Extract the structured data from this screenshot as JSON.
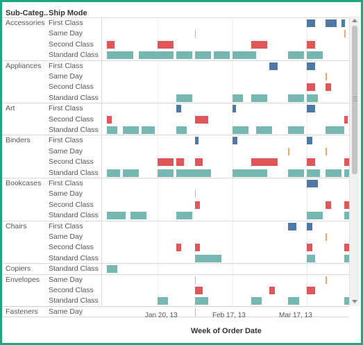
{
  "headers": {
    "subcategory": "Sub-Categ..",
    "ship_mode": "Ship Mode"
  },
  "colors": {
    "First Class": "#4e79a7",
    "Same Day": "#f2a85e",
    "Second Class": "#e15759",
    "Standard Class": "#76b7b2"
  },
  "chart_data": {
    "type": "gantt",
    "x_label": "Week of Order Date",
    "x_ticks": [
      "Jan 20, 13",
      "Feb 17, 13",
      "Mar 17, 13"
    ],
    "x_range": [
      "2012-12-30",
      "2013-04-01"
    ],
    "groups": [
      {
        "subcategory": "Accessories",
        "rows": [
          {
            "mode": "First Class",
            "bars": [
              [
                "2013-03-17",
                "2013-03-20"
              ],
              [
                "2013-03-24",
                "2013-03-28"
              ],
              [
                "2013-03-30",
                "2013-03-31"
              ]
            ]
          },
          {
            "mode": "Same Day",
            "bars": [
              [
                "2013-02-03",
                "2013-02-03"
              ],
              [
                "2013-03-31",
                "2013-03-31"
              ]
            ]
          },
          {
            "mode": "Second Class",
            "bars": [
              [
                "2013-01-01",
                "2013-01-04"
              ],
              [
                "2013-01-20",
                "2013-01-26"
              ],
              [
                "2013-02-24",
                "2013-03-02"
              ],
              [
                "2013-03-17",
                "2013-03-20"
              ]
            ]
          },
          {
            "mode": "Standard Class",
            "bars": [
              [
                "2013-01-01",
                "2013-01-11"
              ],
              [
                "2013-01-13",
                "2013-01-23"
              ],
              [
                "2013-01-20",
                "2013-01-26"
              ],
              [
                "2013-01-27",
                "2013-02-02"
              ],
              [
                "2013-02-03",
                "2013-02-09"
              ],
              [
                "2013-02-10",
                "2013-02-16"
              ],
              [
                "2013-02-17",
                "2013-02-26"
              ],
              [
                "2013-03-10",
                "2013-03-16"
              ],
              [
                "2013-03-17",
                "2013-03-23"
              ]
            ]
          }
        ]
      },
      {
        "subcategory": "Appliances",
        "rows": [
          {
            "mode": "First Class",
            "bars": [
              [
                "2013-03-03",
                "2013-03-06"
              ],
              [
                "2013-03-17",
                "2013-03-20"
              ]
            ]
          },
          {
            "mode": "Same Day",
            "bars": [
              [
                "2013-03-24",
                "2013-03-24"
              ]
            ]
          },
          {
            "mode": "Second Class",
            "bars": [
              [
                "2013-03-17",
                "2013-03-20"
              ],
              [
                "2013-03-24",
                "2013-03-26"
              ]
            ]
          },
          {
            "mode": "Standard Class",
            "bars": [
              [
                "2013-01-27",
                "2013-02-02"
              ],
              [
                "2013-02-17",
                "2013-02-21"
              ],
              [
                "2013-02-24",
                "2013-03-02"
              ],
              [
                "2013-03-10",
                "2013-03-16"
              ],
              [
                "2013-03-17",
                "2013-03-21"
              ]
            ]
          }
        ]
      },
      {
        "subcategory": "Art",
        "rows": [
          {
            "mode": "First Class",
            "bars": [
              [
                "2013-01-27",
                "2013-01-29"
              ],
              [
                "2013-02-17",
                "2013-02-17"
              ],
              [
                "2013-03-17",
                "2013-03-20"
              ]
            ]
          },
          {
            "mode": "Second Class",
            "bars": [
              [
                "2013-01-01",
                "2013-01-03"
              ],
              [
                "2013-02-03",
                "2013-02-08"
              ],
              [
                "2013-03-31",
                "2013-04-01"
              ]
            ]
          },
          {
            "mode": "Standard Class",
            "bars": [
              [
                "2013-01-01",
                "2013-01-05"
              ],
              [
                "2013-01-07",
                "2013-01-13"
              ],
              [
                "2013-01-14",
                "2013-01-19"
              ],
              [
                "2013-01-27",
                "2013-01-31"
              ],
              [
                "2013-02-17",
                "2013-02-23"
              ],
              [
                "2013-02-26",
                "2013-03-04"
              ],
              [
                "2013-03-10",
                "2013-03-16"
              ],
              [
                "2013-03-24",
                "2013-03-31"
              ]
            ]
          }
        ]
      },
      {
        "subcategory": "Binders",
        "rows": [
          {
            "mode": "First Class",
            "bars": [
              [
                "2013-02-03",
                "2013-02-03"
              ],
              [
                "2013-02-17",
                "2013-02-19"
              ],
              [
                "2013-03-17",
                "2013-03-19"
              ]
            ]
          },
          {
            "mode": "Same Day",
            "bars": [
              [
                "2013-03-10",
                "2013-03-10"
              ],
              [
                "2013-03-24",
                "2013-03-24"
              ]
            ]
          },
          {
            "mode": "Second Class",
            "bars": [
              [
                "2013-01-20",
                "2013-01-26"
              ],
              [
                "2013-01-27",
                "2013-01-30"
              ],
              [
                "2013-02-03",
                "2013-02-06"
              ],
              [
                "2013-02-24",
                "2013-03-04"
              ],
              [
                "2013-03-03",
                "2013-03-06"
              ],
              [
                "2013-03-17",
                "2013-03-20"
              ],
              [
                "2013-03-31",
                "2013-04-02"
              ]
            ]
          },
          {
            "mode": "Standard Class",
            "bars": [
              [
                "2013-01-01",
                "2013-01-06"
              ],
              [
                "2013-01-07",
                "2013-01-13"
              ],
              [
                "2013-01-20",
                "2013-01-26"
              ],
              [
                "2013-01-27",
                "2013-02-09"
              ],
              [
                "2013-02-17",
                "2013-03-02"
              ],
              [
                "2013-03-10",
                "2013-03-16"
              ],
              [
                "2013-03-17",
                "2013-03-22"
              ],
              [
                "2013-03-24",
                "2013-03-30"
              ],
              [
                "2013-03-31",
                "2013-04-05"
              ]
            ]
          }
        ]
      },
      {
        "subcategory": "Bookcases",
        "rows": [
          {
            "mode": "First Class",
            "bars": [
              [
                "2013-03-17",
                "2013-03-21"
              ]
            ]
          },
          {
            "mode": "Same Day",
            "bars": [
              [
                "2013-02-03",
                "2013-02-03"
              ]
            ]
          },
          {
            "mode": "Second Class",
            "bars": [
              [
                "2013-02-03",
                "2013-02-05"
              ],
              [
                "2013-03-24",
                "2013-03-26"
              ],
              [
                "2013-03-31",
                "2013-04-02"
              ]
            ]
          },
          {
            "mode": "Standard Class",
            "bars": [
              [
                "2013-01-01",
                "2013-01-08"
              ],
              [
                "2013-01-10",
                "2013-01-16"
              ],
              [
                "2013-01-27",
                "2013-02-02"
              ],
              [
                "2013-03-17",
                "2013-03-23"
              ],
              [
                "2013-03-31",
                "2013-04-04"
              ]
            ]
          }
        ]
      },
      {
        "subcategory": "Chairs",
        "rows": [
          {
            "mode": "First Class",
            "bars": [
              [
                "2013-03-10",
                "2013-03-13"
              ],
              [
                "2013-03-17",
                "2013-03-19"
              ]
            ]
          },
          {
            "mode": "Same Day",
            "bars": [
              [
                "2013-03-24",
                "2013-03-24"
              ]
            ]
          },
          {
            "mode": "Second Class",
            "bars": [
              [
                "2013-01-27",
                "2013-01-29"
              ],
              [
                "2013-02-03",
                "2013-02-05"
              ],
              [
                "2013-03-17",
                "2013-03-19"
              ],
              [
                "2013-03-31",
                "2013-04-04"
              ]
            ]
          },
          {
            "mode": "Standard Class",
            "bars": [
              [
                "2013-02-03",
                "2013-02-13"
              ],
              [
                "2013-03-17",
                "2013-03-20"
              ],
              [
                "2013-03-31",
                "2013-04-03"
              ]
            ]
          }
        ]
      },
      {
        "subcategory": "Copiers",
        "rows": [
          {
            "mode": "Standard Class",
            "bars": [
              [
                "2013-01-01",
                "2013-01-05"
              ]
            ]
          }
        ]
      },
      {
        "subcategory": "Envelopes",
        "rows": [
          {
            "mode": "Same Day",
            "bars": [
              [
                "2013-02-03",
                "2013-02-03"
              ],
              [
                "2013-03-24",
                "2013-03-24"
              ]
            ]
          },
          {
            "mode": "Second Class",
            "bars": [
              [
                "2013-02-03",
                "2013-02-06"
              ],
              [
                "2013-03-03",
                "2013-03-05"
              ],
              [
                "2013-03-17",
                "2013-03-20"
              ]
            ]
          },
          {
            "mode": "Standard Class",
            "bars": [
              [
                "2013-01-20",
                "2013-01-24"
              ],
              [
                "2013-02-03",
                "2013-02-08"
              ],
              [
                "2013-02-24",
                "2013-02-28"
              ],
              [
                "2013-03-10",
                "2013-03-14"
              ],
              [
                "2013-03-31",
                "2013-04-04"
              ]
            ]
          }
        ]
      },
      {
        "subcategory": "Fasteners",
        "rows": [
          {
            "mode": "Same Day",
            "bars": [
              [
                "2013-02-03",
                "2013-02-03"
              ]
            ]
          }
        ]
      }
    ]
  }
}
